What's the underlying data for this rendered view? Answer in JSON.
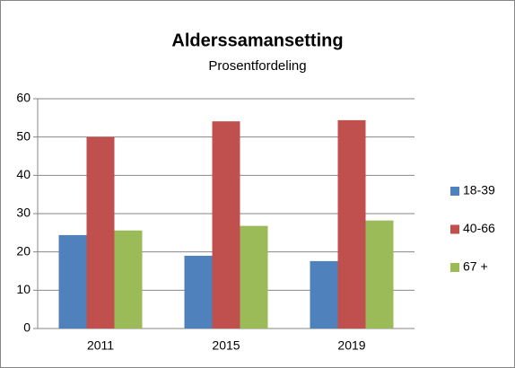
{
  "chart_data": {
    "type": "bar",
    "title": "Alderssamansetting",
    "subtitle": "Prosentfordeling",
    "categories": [
      "2011",
      "2015",
      "2019"
    ],
    "series": [
      {
        "name": "18-39",
        "color": "#4f81bd",
        "values": [
          24.4,
          19,
          17.6
        ]
      },
      {
        "name": "40-66",
        "color": "#c0504d",
        "values": [
          50,
          54.1,
          54.4
        ]
      },
      {
        "name": "67 +",
        "color": "#9bbb59",
        "values": [
          25.6,
          26.8,
          28.2
        ]
      }
    ],
    "ylim": [
      0,
      60
    ],
    "yticks": [
      0,
      10,
      20,
      30,
      40,
      50,
      60
    ],
    "grid": true,
    "legend": "right"
  }
}
